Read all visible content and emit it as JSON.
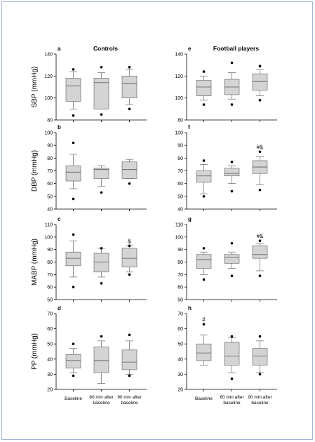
{
  "chart_data": [
    {
      "type": "box",
      "id": "a",
      "panel_letter": "a",
      "group_title": "Controls",
      "ylabel": "SBP (mmHg)",
      "ylim": [
        80,
        140
      ],
      "yticks": [
        80,
        100,
        120,
        140
      ],
      "categories": [
        "Baseline",
        "60 min after baseline",
        "90 min after baseline"
      ],
      "boxes": [
        {
          "q1": 97,
          "median": 111,
          "q3": 118,
          "whisker_low": 90,
          "whisker_high": 124,
          "outliers": [
            84,
            126
          ],
          "annotation": ""
        },
        {
          "q1": 90,
          "median": 114,
          "q3": 118,
          "whisker_low": 90,
          "whisker_high": 123,
          "outliers": [
            85,
            128
          ],
          "annotation": ""
        },
        {
          "q1": 100,
          "median": 113,
          "q3": 120,
          "whisker_low": 94,
          "whisker_high": 126,
          "outliers": [
            90,
            128
          ],
          "annotation": ""
        }
      ]
    },
    {
      "type": "box",
      "id": "e",
      "panel_letter": "e",
      "group_title": "Football players",
      "ylabel": "",
      "ylim": [
        80,
        140
      ],
      "yticks": [
        80,
        100,
        120,
        140
      ],
      "categories": [
        "Baseline",
        "60 min after baseline",
        "90 min after baseline"
      ],
      "boxes": [
        {
          "q1": 102,
          "median": 110,
          "q3": 116,
          "whisker_low": 98,
          "whisker_high": 120,
          "outliers": [
            94,
            124
          ],
          "annotation": ""
        },
        {
          "q1": 103,
          "median": 110,
          "q3": 117,
          "whisker_low": 99,
          "whisker_high": 123,
          "outliers": [
            94,
            132
          ],
          "annotation": ""
        },
        {
          "q1": 107,
          "median": 115,
          "q3": 122,
          "whisker_low": 102,
          "whisker_high": 126,
          "outliers": [
            98,
            129
          ],
          "annotation": ""
        }
      ]
    },
    {
      "type": "box",
      "id": "b",
      "panel_letter": "b",
      "group_title": "",
      "ylabel": "DBP (mmHg)",
      "ylim": [
        40,
        100
      ],
      "yticks": [
        40,
        50,
        60,
        70,
        80,
        90,
        100
      ],
      "categories": [
        "Baseline",
        "60 min after baseline",
        "90 min after baseline"
      ],
      "boxes": [
        {
          "q1": 62,
          "median": 69,
          "q3": 74,
          "whisker_low": 56,
          "whisker_high": 83,
          "outliers": [
            48,
            92
          ],
          "annotation": ""
        },
        {
          "q1": 64,
          "median": 71,
          "q3": 72,
          "whisker_low": 58,
          "whisker_high": 74,
          "outliers": [
            53
          ],
          "annotation": ""
        },
        {
          "q1": 64,
          "median": 71,
          "q3": 77,
          "whisker_low": 64,
          "whisker_high": 79,
          "outliers": [
            60
          ],
          "annotation": ""
        }
      ]
    },
    {
      "type": "box",
      "id": "f",
      "panel_letter": "f",
      "group_title": "",
      "ylabel": "",
      "ylim": [
        40,
        100
      ],
      "yticks": [
        40,
        50,
        60,
        70,
        80,
        90,
        100
      ],
      "categories": [
        "Baseline",
        "60 min after baseline",
        "90 min after baseline"
      ],
      "boxes": [
        {
          "q1": 61,
          "median": 66,
          "q3": 70,
          "whisker_low": 52,
          "whisker_high": 75,
          "outliers": [
            50,
            78
          ],
          "annotation": ""
        },
        {
          "q1": 66,
          "median": 68,
          "q3": 72,
          "whisker_low": 60,
          "whisker_high": 74,
          "outliers": [
            54,
            77
          ],
          "annotation": ""
        },
        {
          "q1": 68,
          "median": 73,
          "q3": 78,
          "whisker_low": 59,
          "whisker_high": 81,
          "outliers": [
            55,
            85
          ],
          "annotation": "#&"
        }
      ]
    },
    {
      "type": "box",
      "id": "c",
      "panel_letter": "c",
      "group_title": "",
      "ylabel": "MABP (mmHg)",
      "ylim": [
        50,
        110
      ],
      "yticks": [
        50,
        60,
        70,
        80,
        90,
        100,
        110
      ],
      "categories": [
        "Baseline",
        "60 min after baseline",
        "90 min after baseline"
      ],
      "boxes": [
        {
          "q1": 77,
          "median": 83,
          "q3": 88,
          "whisker_low": 68,
          "whisker_high": 97,
          "outliers": [
            60,
            102
          ],
          "annotation": ""
        },
        {
          "q1": 72,
          "median": 80,
          "q3": 87,
          "whisker_low": 68,
          "whisker_high": 91,
          "outliers": [
            63,
            91
          ],
          "annotation": ""
        },
        {
          "q1": 76,
          "median": 83,
          "q3": 91,
          "whisker_low": 72,
          "whisker_high": 93,
          "outliers": [
            70,
            93
          ],
          "annotation": "&"
        }
      ]
    },
    {
      "type": "box",
      "id": "g",
      "panel_letter": "g",
      "group_title": "",
      "ylabel": "",
      "ylim": [
        50,
        110
      ],
      "yticks": [
        50,
        60,
        70,
        80,
        90,
        100,
        110
      ],
      "categories": [
        "Baseline",
        "60 min after baseline",
        "90 min after baseline"
      ],
      "boxes": [
        {
          "q1": 75,
          "median": 82,
          "q3": 86,
          "whisker_low": 70,
          "whisker_high": 88,
          "outliers": [
            66,
            91
          ],
          "annotation": ""
        },
        {
          "q1": 79,
          "median": 84,
          "q3": 86,
          "whisker_low": 75,
          "whisker_high": 88,
          "outliers": [
            69,
            95
          ],
          "annotation": ""
        },
        {
          "q1": 83,
          "median": 86,
          "q3": 93,
          "whisker_low": 73,
          "whisker_high": 95,
          "outliers": [
            69,
            97
          ],
          "annotation": "#&"
        }
      ]
    },
    {
      "type": "box",
      "id": "d",
      "panel_letter": "d",
      "group_title": "",
      "ylabel": "PP (mmHg)",
      "ylim": [
        20,
        70
      ],
      "yticks": [
        20,
        30,
        40,
        50,
        60,
        70
      ],
      "categories": [
        "Baseline",
        "60 min after baseline",
        "90 min after baseline"
      ],
      "boxes": [
        {
          "q1": 34,
          "median": 39,
          "q3": 43,
          "whisker_low": 31,
          "whisker_high": 47,
          "outliers": [
            29,
            50
          ],
          "annotation": ""
        },
        {
          "q1": 31,
          "median": 39,
          "q3": 48,
          "whisker_low": 24,
          "whisker_high": 52,
          "outliers": [
            55
          ],
          "annotation": ""
        },
        {
          "q1": 33,
          "median": 38,
          "q3": 46,
          "whisker_low": 30,
          "whisker_high": 52,
          "outliers": [
            29,
            56
          ],
          "annotation": ""
        }
      ]
    },
    {
      "type": "box",
      "id": "h",
      "panel_letter": "h",
      "group_title": "",
      "ylabel": "",
      "ylim": [
        20,
        70
      ],
      "yticks": [
        20,
        30,
        40,
        50,
        60,
        70
      ],
      "categories": [
        "Baseline",
        "60 min after baseline",
        "90 min after baseline"
      ],
      "boxes": [
        {
          "q1": 39,
          "median": 44,
          "q3": 50,
          "whisker_low": 36,
          "whisker_high": 56,
          "outliers": [
            63
          ],
          "annotation": "#"
        },
        {
          "q1": 36,
          "median": 42,
          "q3": 51,
          "whisker_low": 31,
          "whisker_high": 54,
          "outliers": [
            27,
            55
          ],
          "annotation": ""
        },
        {
          "q1": 36,
          "median": 42,
          "q3": 47,
          "whisker_low": 31,
          "whisker_high": 52,
          "outliers": [
            30,
            55
          ],
          "annotation": ""
        }
      ]
    }
  ],
  "x_categories": [
    "Baseline",
    "60 min after baseline",
    "90 min after baseline"
  ],
  "colors": {
    "box_fill": "#d4d4d4",
    "box_stroke": "#5a5a5a",
    "whisker": "#666666",
    "outlier": "#000000",
    "axis": "#000000",
    "page_border": "#9fb7d8"
  }
}
